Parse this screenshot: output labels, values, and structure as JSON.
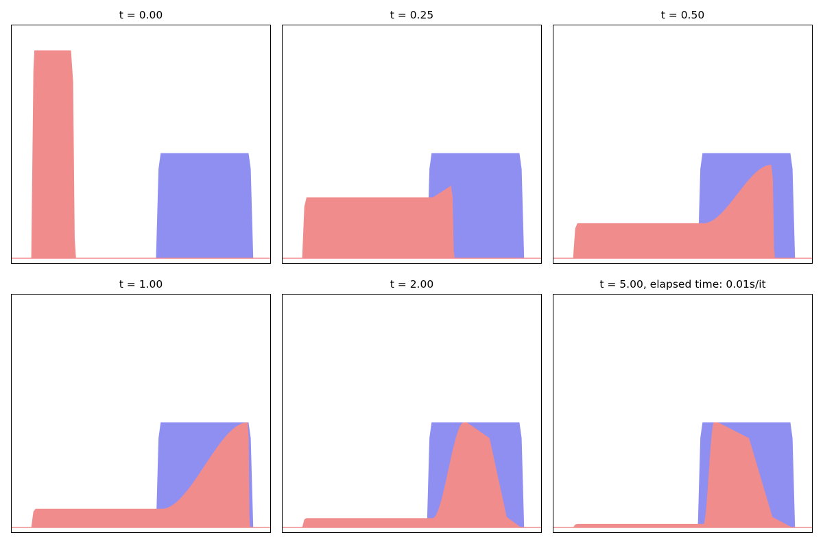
{
  "colors": {
    "target": "#8f8ff2",
    "source": "#f08c8c",
    "axes": "#000000",
    "background": "#ffffff"
  },
  "chart_data": [
    {
      "type": "area",
      "title": "t = 0.00",
      "xlim": [
        0,
        1
      ],
      "ylim": [
        0,
        1
      ],
      "grid": false,
      "source": {
        "plateau_height": 0.0,
        "plateau_start": 0.09,
        "plateau_end": 0.09,
        "bump_start": 0.09,
        "bump_end": 0.23,
        "bump_peak": 0.89,
        "drop_end": 0.25,
        "peak_shape": "flat"
      },
      "target": {
        "start": 0.57,
        "end": 0.92,
        "height": 0.45
      }
    },
    {
      "type": "area",
      "title": "t = 0.25",
      "xlim": [
        0,
        1
      ],
      "ylim": [
        0,
        1
      ],
      "grid": false,
      "source": {
        "plateau_height": 0.26,
        "plateau_start": 0.09,
        "plateau_end": 0.58,
        "bump_start": 0.58,
        "bump_end": 0.65,
        "bump_peak": 0.31,
        "drop_end": 0.665,
        "peak_shape": "ramp"
      },
      "target": {
        "start": 0.57,
        "end": 0.92,
        "height": 0.45
      }
    },
    {
      "type": "area",
      "title": "t = 0.50",
      "xlim": [
        0,
        1
      ],
      "ylim": [
        0,
        1
      ],
      "grid": false,
      "source": {
        "plateau_height": 0.15,
        "plateau_start": 0.09,
        "plateau_end": 0.58,
        "bump_start": 0.58,
        "bump_end": 0.84,
        "bump_peak": 0.4,
        "drop_end": 0.855,
        "peak_shape": "smooth"
      },
      "target": {
        "start": 0.57,
        "end": 0.92,
        "height": 0.45
      }
    },
    {
      "type": "area",
      "title": "t = 1.00",
      "xlim": [
        0,
        1
      ],
      "ylim": [
        0,
        1
      ],
      "grid": false,
      "source": {
        "plateau_height": 0.08,
        "plateau_start": 0.09,
        "plateau_end": 0.58,
        "bump_start": 0.58,
        "bump_end": 0.91,
        "bump_peak": 0.45,
        "drop_end": 0.92,
        "peak_shape": "smooth"
      },
      "target": {
        "start": 0.57,
        "end": 0.92,
        "height": 0.45
      }
    },
    {
      "type": "area",
      "title": "t = 2.00",
      "xlim": [
        0,
        1
      ],
      "ylim": [
        0,
        1
      ],
      "grid": false,
      "source": {
        "plateau_height": 0.04,
        "plateau_start": 0.09,
        "plateau_end": 0.58,
        "bump_start": 0.58,
        "bump_end": 0.7,
        "bump_peak": 0.45,
        "drop_end": 0.92,
        "peak_shape": "smooth"
      },
      "target": {
        "start": 0.57,
        "end": 0.92,
        "height": 0.45
      }
    },
    {
      "type": "area",
      "title": "t = 5.00, elapsed time: 0.01s/it",
      "xlim": [
        0,
        1
      ],
      "ylim": [
        0,
        1
      ],
      "grid": false,
      "source": {
        "plateau_height": 0.015,
        "plateau_start": 0.09,
        "plateau_end": 0.58,
        "bump_start": 0.58,
        "bump_end": 0.62,
        "bump_peak": 0.45,
        "drop_end": 0.92,
        "peak_shape": "smooth"
      },
      "target": {
        "start": 0.57,
        "end": 0.92,
        "height": 0.45
      }
    }
  ]
}
